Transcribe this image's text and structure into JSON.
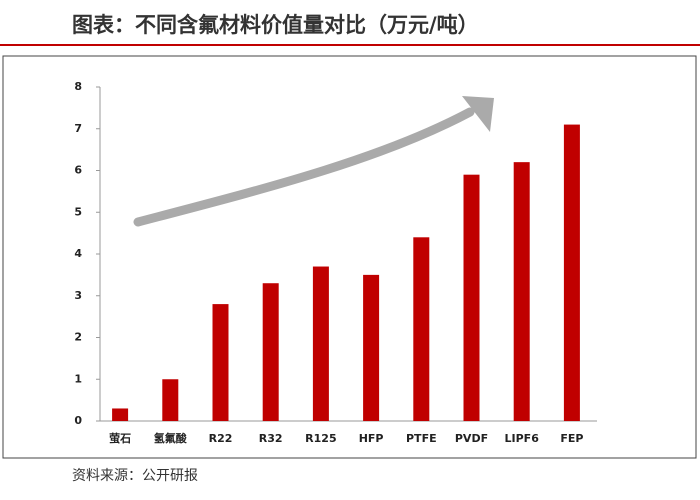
{
  "chart_data": {
    "type": "bar",
    "title": "图表：不同含氟材料价值量对比（万元/吨）",
    "source": "资料来源：公开研报",
    "categories": [
      "萤石",
      "氢氟酸",
      "R22",
      "R32",
      "R125",
      "HFP",
      "PTFE",
      "PVDF",
      "LIPF6",
      "FEP"
    ],
    "values": [
      0.3,
      1.0,
      2.8,
      3.3,
      3.7,
      3.5,
      4.4,
      5.9,
      6.2,
      7.1
    ],
    "color": "#c00000",
    "ylim": [
      0,
      8
    ],
    "yticks": [
      0,
      1,
      2,
      3,
      4,
      5,
      6,
      7,
      8
    ],
    "grid": false
  }
}
